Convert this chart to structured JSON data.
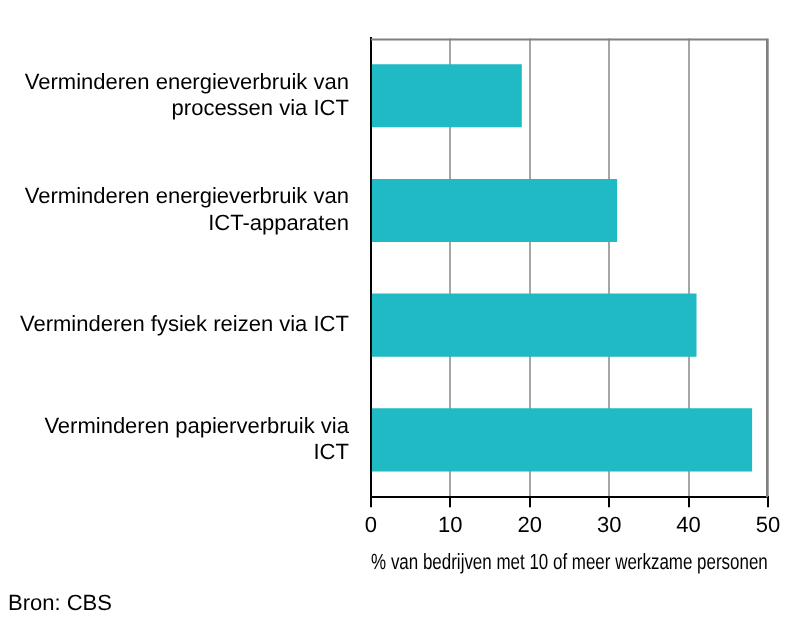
{
  "chart_data": {
    "type": "bar",
    "orientation": "horizontal",
    "categories": [
      "Verminderen energieverbruik van processen via ICT",
      "Verminderen energieverbruik van ICT-apparaten",
      "Verminderen fysiek reizen via ICT",
      "Verminderen papierverbruik via ICT"
    ],
    "values": [
      19,
      31,
      41,
      48
    ],
    "color": "#1fbac4",
    "xlim": [
      0,
      50
    ],
    "xticks": [
      0,
      10,
      20,
      30,
      40,
      50
    ],
    "xlabel": "% van bedrijven met 10 of meer werkzame personen",
    "grid": "x",
    "legend": false,
    "annotations": [
      "Bron: CBS"
    ]
  }
}
